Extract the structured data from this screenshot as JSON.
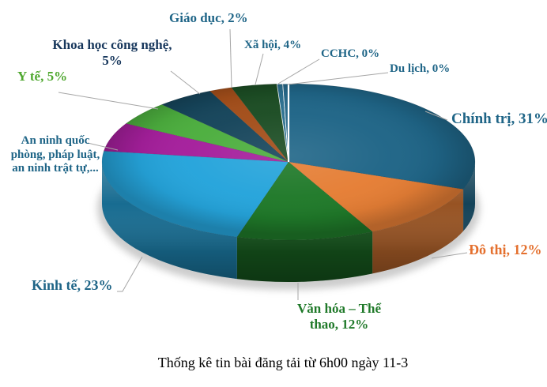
{
  "page": {
    "background": "#FFFFFF"
  },
  "chart_data": {
    "type": "pie",
    "style": "3d-pie",
    "title": "",
    "caption": "Thống kê tin bài đăng tải từ 6h00 ngày 11-3",
    "caption_color": "#000000",
    "legend": "none",
    "start_angle_deg": -90,
    "direction": "clockwise",
    "min_visible_pct": 0.5,
    "leader_color": "#A6A6A6",
    "divider_color": "#FFFFFF",
    "segments": [
      {
        "name": "chinh-tri",
        "label": "Chính trị",
        "value_pct": 31,
        "display": "Chính trị, 31%",
        "color": "#1F6587",
        "label_color": "#1F6587"
      },
      {
        "name": "do-thi",
        "label": "Đô thị",
        "value_pct": 12,
        "display": "Đô thị, 12%",
        "color": "#E57E35",
        "label_color": "#E4702E"
      },
      {
        "name": "van-hoa-the-thao",
        "label": "Văn hóa – Thể thao",
        "value_pct": 12,
        "display": "Văn hóa – Thể thao, 12%",
        "color": "#1F7929",
        "label_color": "#1F7929"
      },
      {
        "name": "kinh-te",
        "label": "Kinh tế",
        "value_pct": 23,
        "display": "Kinh tế, 23%",
        "color": "#25A4DB",
        "label_color": "#1F6587"
      },
      {
        "name": "an-ninh-quoc-phong",
        "label": "An ninh quốc phòng, pháp luật, an ninh trật tự,...",
        "value_pct": 6,
        "display": "An ninh quốc phòng, pháp luật, an ninh trật tự,...",
        "color": "#A51F9C",
        "label_color": "#1F6587"
      },
      {
        "name": "y-te",
        "label": "Y tế",
        "value_pct": 5,
        "display": "Y tế, 5%",
        "color": "#4CAE3E",
        "label_color": "#4EA72E"
      },
      {
        "name": "khoa-hoc-cong-nghe",
        "label": "Khoa học công nghệ",
        "value_pct": 5,
        "display": "Khoa học công nghệ, 5%",
        "color": "#16455B",
        "label_color": "#17375C"
      },
      {
        "name": "giao-duc",
        "label": "Giáo dục",
        "value_pct": 2,
        "display": "Giáo dục, 2%",
        "color": "#A34E1A",
        "label_color": "#1F6587"
      },
      {
        "name": "xa-hoi",
        "label": "Xã hội",
        "value_pct": 4,
        "display": "Xã hội, 4%",
        "color": "#1C4D24",
        "label_color": "#1F6587"
      },
      {
        "name": "cchc",
        "label": "CCHC",
        "value_pct": 0,
        "display": "CCHC, 0%",
        "color": "#2D7191",
        "label_color": "#1F6587"
      },
      {
        "name": "du-lich",
        "label": "Du lịch",
        "value_pct": 0,
        "display": "Du lịch, 0%",
        "color": "#27698A",
        "label_color": "#1F6587"
      }
    ]
  }
}
